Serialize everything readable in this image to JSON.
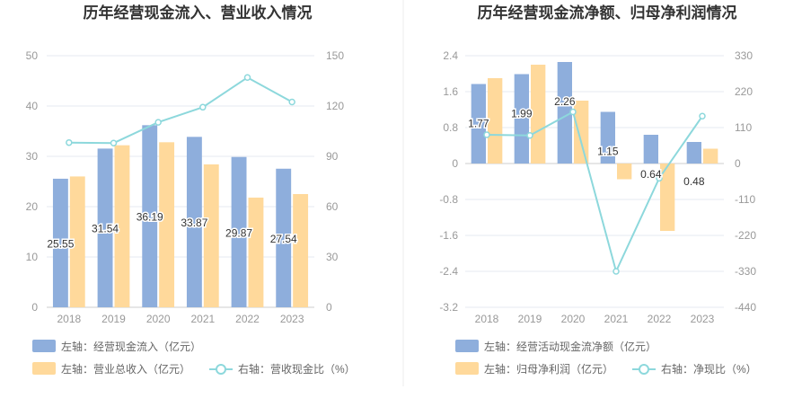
{
  "colors": {
    "bar_blue": "#8eaedc",
    "bar_yellow": "#ffd99b",
    "line_cyan": "#8dd8dc",
    "grid": "#e6e9f0",
    "axis_text": "#999999",
    "title_text": "#333333",
    "divider": "#eeeeee"
  },
  "chart_data": [
    {
      "type": "bar",
      "title": "历年经营现金流入、营业收入情况",
      "categories": [
        "2018",
        "2019",
        "2020",
        "2021",
        "2022",
        "2023"
      ],
      "left_axis": {
        "ylim": [
          0,
          50
        ],
        "ticks": [
          "0",
          "10",
          "20",
          "30",
          "40",
          "50"
        ]
      },
      "right_axis": {
        "ylim": [
          0,
          150
        ],
        "ticks": [
          "0",
          "30",
          "60",
          "90",
          "120",
          "150"
        ]
      },
      "series": [
        {
          "name": "左轴：经营现金流入（亿元）",
          "kind": "bar",
          "axis": "left",
          "color": "#8eaedc",
          "values": [
            25.55,
            31.54,
            36.19,
            33.87,
            29.87,
            27.54
          ],
          "labels": [
            "25.55",
            "31.54",
            "36.19",
            "33.87",
            "29.87",
            "27.54"
          ]
        },
        {
          "name": "左轴：营业总收入（亿元）",
          "kind": "bar",
          "axis": "left",
          "color": "#ffd99b",
          "values": [
            26.0,
            32.2,
            32.8,
            28.4,
            21.8,
            22.5
          ]
        },
        {
          "name": "右轴：营收现金比（%）",
          "kind": "line",
          "axis": "right",
          "color": "#8dd8dc",
          "values": [
            98.2,
            97.9,
            110.3,
            119.3,
            137.0,
            122.4
          ]
        }
      ],
      "legend": [
        "左轴：经营现金流入（亿元）",
        "左轴：营业总收入（亿元）",
        "右轴：营收现金比（%）"
      ],
      "grid": true,
      "legend_position": "bottom"
    },
    {
      "type": "bar",
      "title": "历年经营现金流净额、归母净利润情况",
      "categories": [
        "2018",
        "2019",
        "2020",
        "2021",
        "2022",
        "2023"
      ],
      "left_axis": {
        "ylim": [
          -3.2,
          2.4
        ],
        "ticks": [
          "-3.2",
          "-2.4",
          "-1.6",
          "-0.8",
          "0",
          "0.8",
          "1.6",
          "2.4"
        ]
      },
      "right_axis": {
        "ylim": [
          -440,
          330
        ],
        "ticks": [
          "-440",
          "-330",
          "-220",
          "-110",
          "0",
          "110",
          "220",
          "330"
        ]
      },
      "series": [
        {
          "name": "左轴：经营活动现金流净额（亿元）",
          "kind": "bar",
          "axis": "left",
          "color": "#8eaedc",
          "values": [
            1.77,
            1.99,
            2.26,
            1.15,
            0.64,
            0.48
          ],
          "labels": [
            "1.77",
            "1.99",
            "2.26",
            "1.15",
            "0.64",
            "0.48"
          ]
        },
        {
          "name": "左轴：归母净利润（亿元）",
          "kind": "bar",
          "axis": "left",
          "color": "#ffd99b",
          "values": [
            1.9,
            2.2,
            1.4,
            -0.35,
            -1.5,
            0.33
          ]
        },
        {
          "name": "右轴：净现比（%）",
          "kind": "line",
          "axis": "right",
          "color": "#8dd8dc",
          "values": [
            88,
            86,
            158,
            -330,
            -45,
            145
          ]
        }
      ],
      "legend": [
        "左轴：经营活动现金流净额（亿元）",
        "左轴：归母净利润（亿元）",
        "右轴：净现比（%）"
      ],
      "grid": true,
      "legend_position": "bottom"
    }
  ]
}
